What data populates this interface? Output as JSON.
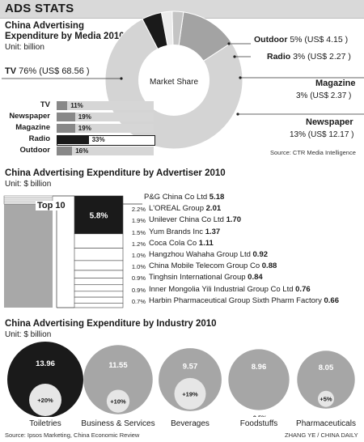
{
  "header": {
    "title": "ADS STATS"
  },
  "media": {
    "title_line1": "China Advertising",
    "title_line2": "Expenditure by Media 2010",
    "unit": "Unit: billion",
    "center_label": "Market Share",
    "source": "Source: CTR Media Intelligence",
    "labels": {
      "tv_name": "TV",
      "tv_detail": "76% (US$ 68.56 )",
      "outdoor_name": "Outdoor",
      "outdoor_detail": "5% (US$ 4.15 )",
      "radio_name": "Radio",
      "radio_detail": "3% (US$ 2.27 )",
      "magazine_name": "Magazine",
      "magazine_detail": "3% (US$ 2.37 )",
      "newspaper_name": "Newspaper",
      "newspaper_detail": "13% (US$ 12.17 )"
    },
    "growth_rows": [
      {
        "label": "TV",
        "pct": "11%",
        "value": 11
      },
      {
        "label": "Newspaper",
        "pct": "19%",
        "value": 19
      },
      {
        "label": "Magazine",
        "pct": "19%",
        "value": 19
      },
      {
        "label": "Radio",
        "pct": "33%",
        "value": 33
      },
      {
        "label": "Outdoor",
        "pct": "16%",
        "value": 16
      }
    ]
  },
  "advertiser": {
    "title": "China Advertising Expenditure by Advertiser 2010",
    "unit": "Unit: $ billion",
    "top10_label": "Top 10",
    "top10_share": "5.8%",
    "companies": [
      {
        "pct": "",
        "name": "P&G China Co Ltd",
        "value": "5.18"
      },
      {
        "pct": "2.2%",
        "name": "L'OREAL Group",
        "value": "2.01"
      },
      {
        "pct": "1.9%",
        "name": "Unilever China Co Ltd",
        "value": "1.70"
      },
      {
        "pct": "1.5%",
        "name": "Yum Brands Inc",
        "value": "1.37"
      },
      {
        "pct": "1.2%",
        "name": "Coca Cola Co",
        "value": "1.11"
      },
      {
        "pct": "1.0%",
        "name": "Hangzhou Wahaha Group Ltd",
        "value": "0.92"
      },
      {
        "pct": "1.0%",
        "name": "China Mobile Telecom Group Co",
        "value": "0.88"
      },
      {
        "pct": "0.9%",
        "name": "Tinghsin International Group",
        "value": "0.84"
      },
      {
        "pct": "0.9%",
        "name": "Inner Mongolia Yili Industrial Group Co Ltd",
        "value": "0.76"
      },
      {
        "pct": "0.7%",
        "name": "Harbin Pharmaceutical Group Sixth Pharm Factory",
        "value": "0.66"
      }
    ]
  },
  "industry": {
    "title": "China Advertising Expenditure by Industry 2010",
    "unit": "Unit: $ billion",
    "items": [
      {
        "name": "Toiletries",
        "value": "13.96",
        "growth": "+20%"
      },
      {
        "name": "Business & Services",
        "value": "11.55",
        "growth": "+10%"
      },
      {
        "name": "Beverages",
        "value": "9.57",
        "growth": "+19%"
      },
      {
        "name": "Foodstuffs",
        "value": "8.96",
        "growth": "-0.5%"
      },
      {
        "name": "Pharmaceuticals",
        "value": "8.05",
        "growth": "+5%"
      }
    ]
  },
  "footer": {
    "source": "Source: Ipsos Marketing, China Economic Review",
    "credit": "ZHANG YE / CHINA DAILY"
  },
  "chart_data": [
    {
      "type": "pie",
      "title": "China Advertising Expenditure by Media 2010",
      "unit": "billion",
      "categories": [
        "TV",
        "Newspaper",
        "Magazine",
        "Radio",
        "Outdoor"
      ],
      "values": [
        68.56,
        12.17,
        2.37,
        2.27,
        4.15
      ],
      "shares_percent": [
        76,
        13,
        3,
        3,
        5
      ]
    },
    {
      "type": "bar",
      "categories": [
        "TV",
        "Newspaper",
        "Magazine",
        "Radio",
        "Outdoor"
      ],
      "values": [
        11,
        19,
        19,
        33,
        16
      ],
      "xlim": [
        0,
        100
      ]
    },
    {
      "type": "bar",
      "title": "China Advertising Expenditure by Advertiser 2010",
      "unit": "$ billion",
      "categories": [
        "P&G China Co Ltd",
        "L'OREAL Group",
        "Unilever China Co Ltd",
        "Yum Brands Inc",
        "Coca Cola Co",
        "Hangzhou Wahaha Group Ltd",
        "China Mobile Telecom Group Co",
        "Tinghsin International Group",
        "Inner Mongolia Yili Industrial Group Co Ltd",
        "Harbin Pharmaceutical Group Sixth Pharm Factory"
      ],
      "values": [
        5.18,
        2.01,
        1.7,
        1.37,
        1.11,
        0.92,
        0.88,
        0.84,
        0.76,
        0.66
      ],
      "shares_percent": [
        5.8,
        2.2,
        1.9,
        1.5,
        1.2,
        1.0,
        1.0,
        0.9,
        0.9,
        0.7
      ]
    },
    {
      "type": "scatter",
      "title": "China Advertising Expenditure by Industry 2010",
      "unit": "$ billion",
      "categories": [
        "Toiletries",
        "Business & Services",
        "Beverages",
        "Foodstuffs",
        "Pharmaceuticals"
      ],
      "values": [
        13.96,
        11.55,
        9.57,
        8.96,
        8.05
      ],
      "growth_percent": [
        20,
        10,
        19,
        -0.5,
        5
      ]
    }
  ]
}
